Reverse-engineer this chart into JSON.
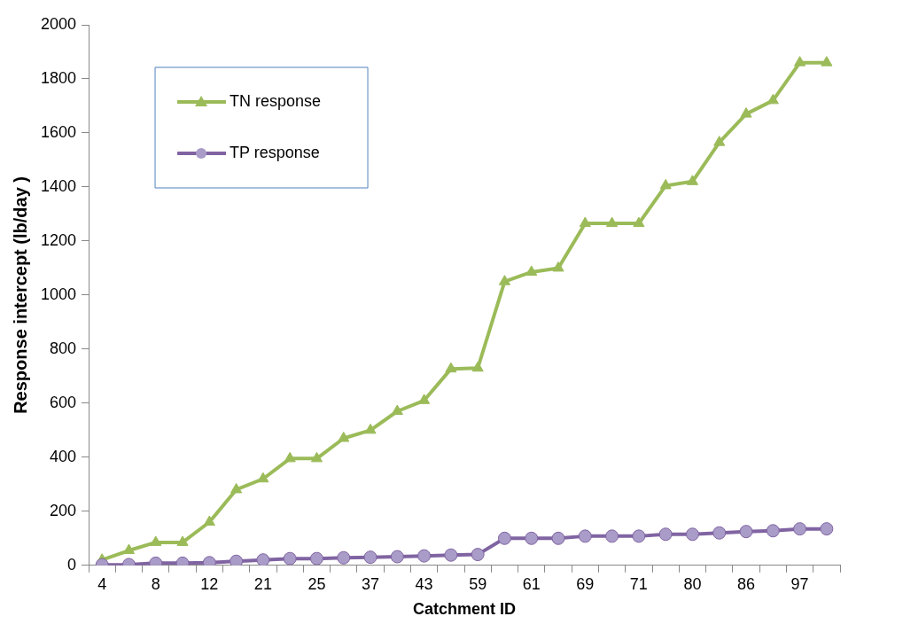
{
  "chart_data": {
    "type": "line",
    "xlabel": "Catchment ID",
    "ylabel": "Response intercept (lb/day )",
    "categories": [
      "4",
      null,
      "8",
      null,
      "12",
      null,
      "21",
      null,
      "25",
      null,
      "37",
      null,
      "43",
      null,
      "59",
      null,
      "61",
      null,
      "69",
      null,
      "71",
      null,
      "80",
      null,
      "86",
      null,
      "97",
      null
    ],
    "series": [
      {
        "name": "TN response",
        "color": "#9bbb59",
        "marker": "triangle",
        "values": [
          20,
          55,
          85,
          85,
          160,
          280,
          320,
          395,
          395,
          470,
          500,
          570,
          610,
          727,
          730,
          1050,
          1085,
          1100,
          1265,
          1265,
          1265,
          1405,
          1420,
          1565,
          1670,
          1720,
          1860,
          1860
        ]
      },
      {
        "name": "TP response",
        "color": "#8064a2",
        "marker": "circle",
        "values": [
          2,
          3,
          8,
          8,
          10,
          15,
          20,
          25,
          25,
          28,
          30,
          32,
          35,
          38,
          40,
          100,
          100,
          100,
          108,
          108,
          108,
          115,
          115,
          120,
          125,
          128,
          135,
          135
        ]
      }
    ],
    "ylim": [
      0,
      2000
    ],
    "yticks": [
      0,
      200,
      400,
      600,
      800,
      1000,
      1200,
      1400,
      1600,
      1800,
      2000
    ],
    "grid": false,
    "legend": "top left",
    "line_style": "solid"
  }
}
